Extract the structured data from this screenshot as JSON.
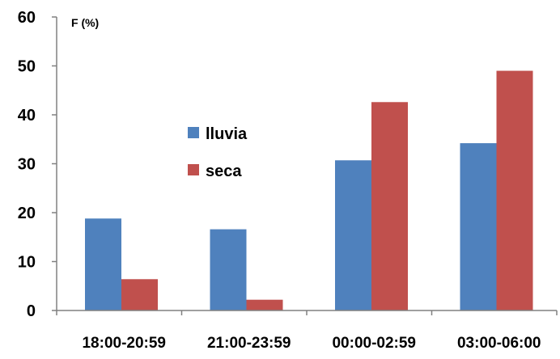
{
  "chart_data": {
    "type": "bar",
    "title": "",
    "xlabel": "",
    "ylabel": "F (%)",
    "ylim": [
      0,
      60
    ],
    "yticks": [
      0,
      10,
      20,
      30,
      40,
      50,
      60
    ],
    "grid": false,
    "legend_position": "center-left",
    "categories": [
      "18:00-20:59",
      "21:00-23:59",
      "00:00-02:59",
      "03:00-06:00"
    ],
    "series": [
      {
        "name": "lluvia",
        "color": "#4f81bd",
        "values": [
          18.8,
          16.6,
          30.7,
          34.2
        ]
      },
      {
        "name": "seca",
        "color": "#c0504d",
        "values": [
          6.4,
          2.2,
          42.6,
          49.0
        ]
      }
    ]
  }
}
